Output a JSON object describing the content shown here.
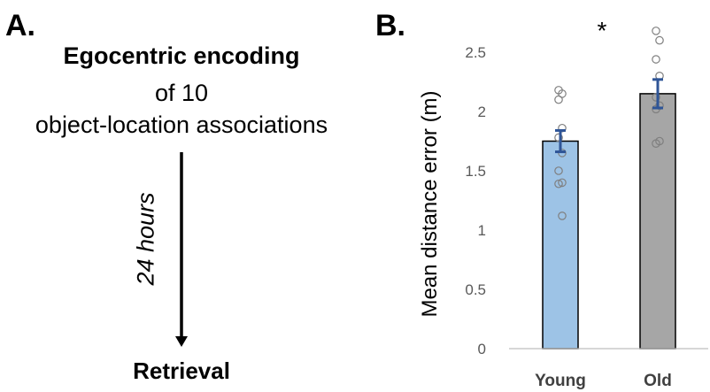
{
  "panel_a": {
    "label": "A.",
    "title": "Egocentric encoding",
    "line2": "of 10",
    "line3": "object-location associations",
    "delay": "24 hours",
    "end": "Retrieval"
  },
  "panel_b": {
    "label": "B."
  },
  "chart_data": {
    "type": "bar",
    "categories": [
      "Young",
      "Old"
    ],
    "values": [
      1.75,
      2.15
    ],
    "error": [
      0.09,
      0.12
    ],
    "colors": [
      "#9dc3e6",
      "#a6a6a6"
    ],
    "error_color": "#2f5597",
    "points": [
      [
        2.18,
        2.15,
        2.1,
        1.86,
        1.78,
        1.65,
        1.5,
        1.4,
        1.39,
        1.12
      ],
      [
        2.68,
        2.6,
        2.44,
        2.3,
        2.12,
        2.05,
        2.02,
        1.75,
        1.73
      ]
    ],
    "ylabel": "Mean distance error (m)",
    "ylim": [
      0,
      2.5
    ],
    "yticks": [
      0,
      0.5,
      1,
      1.5,
      2,
      2.5
    ],
    "significance": "*",
    "grid": false,
    "legend": "none"
  }
}
